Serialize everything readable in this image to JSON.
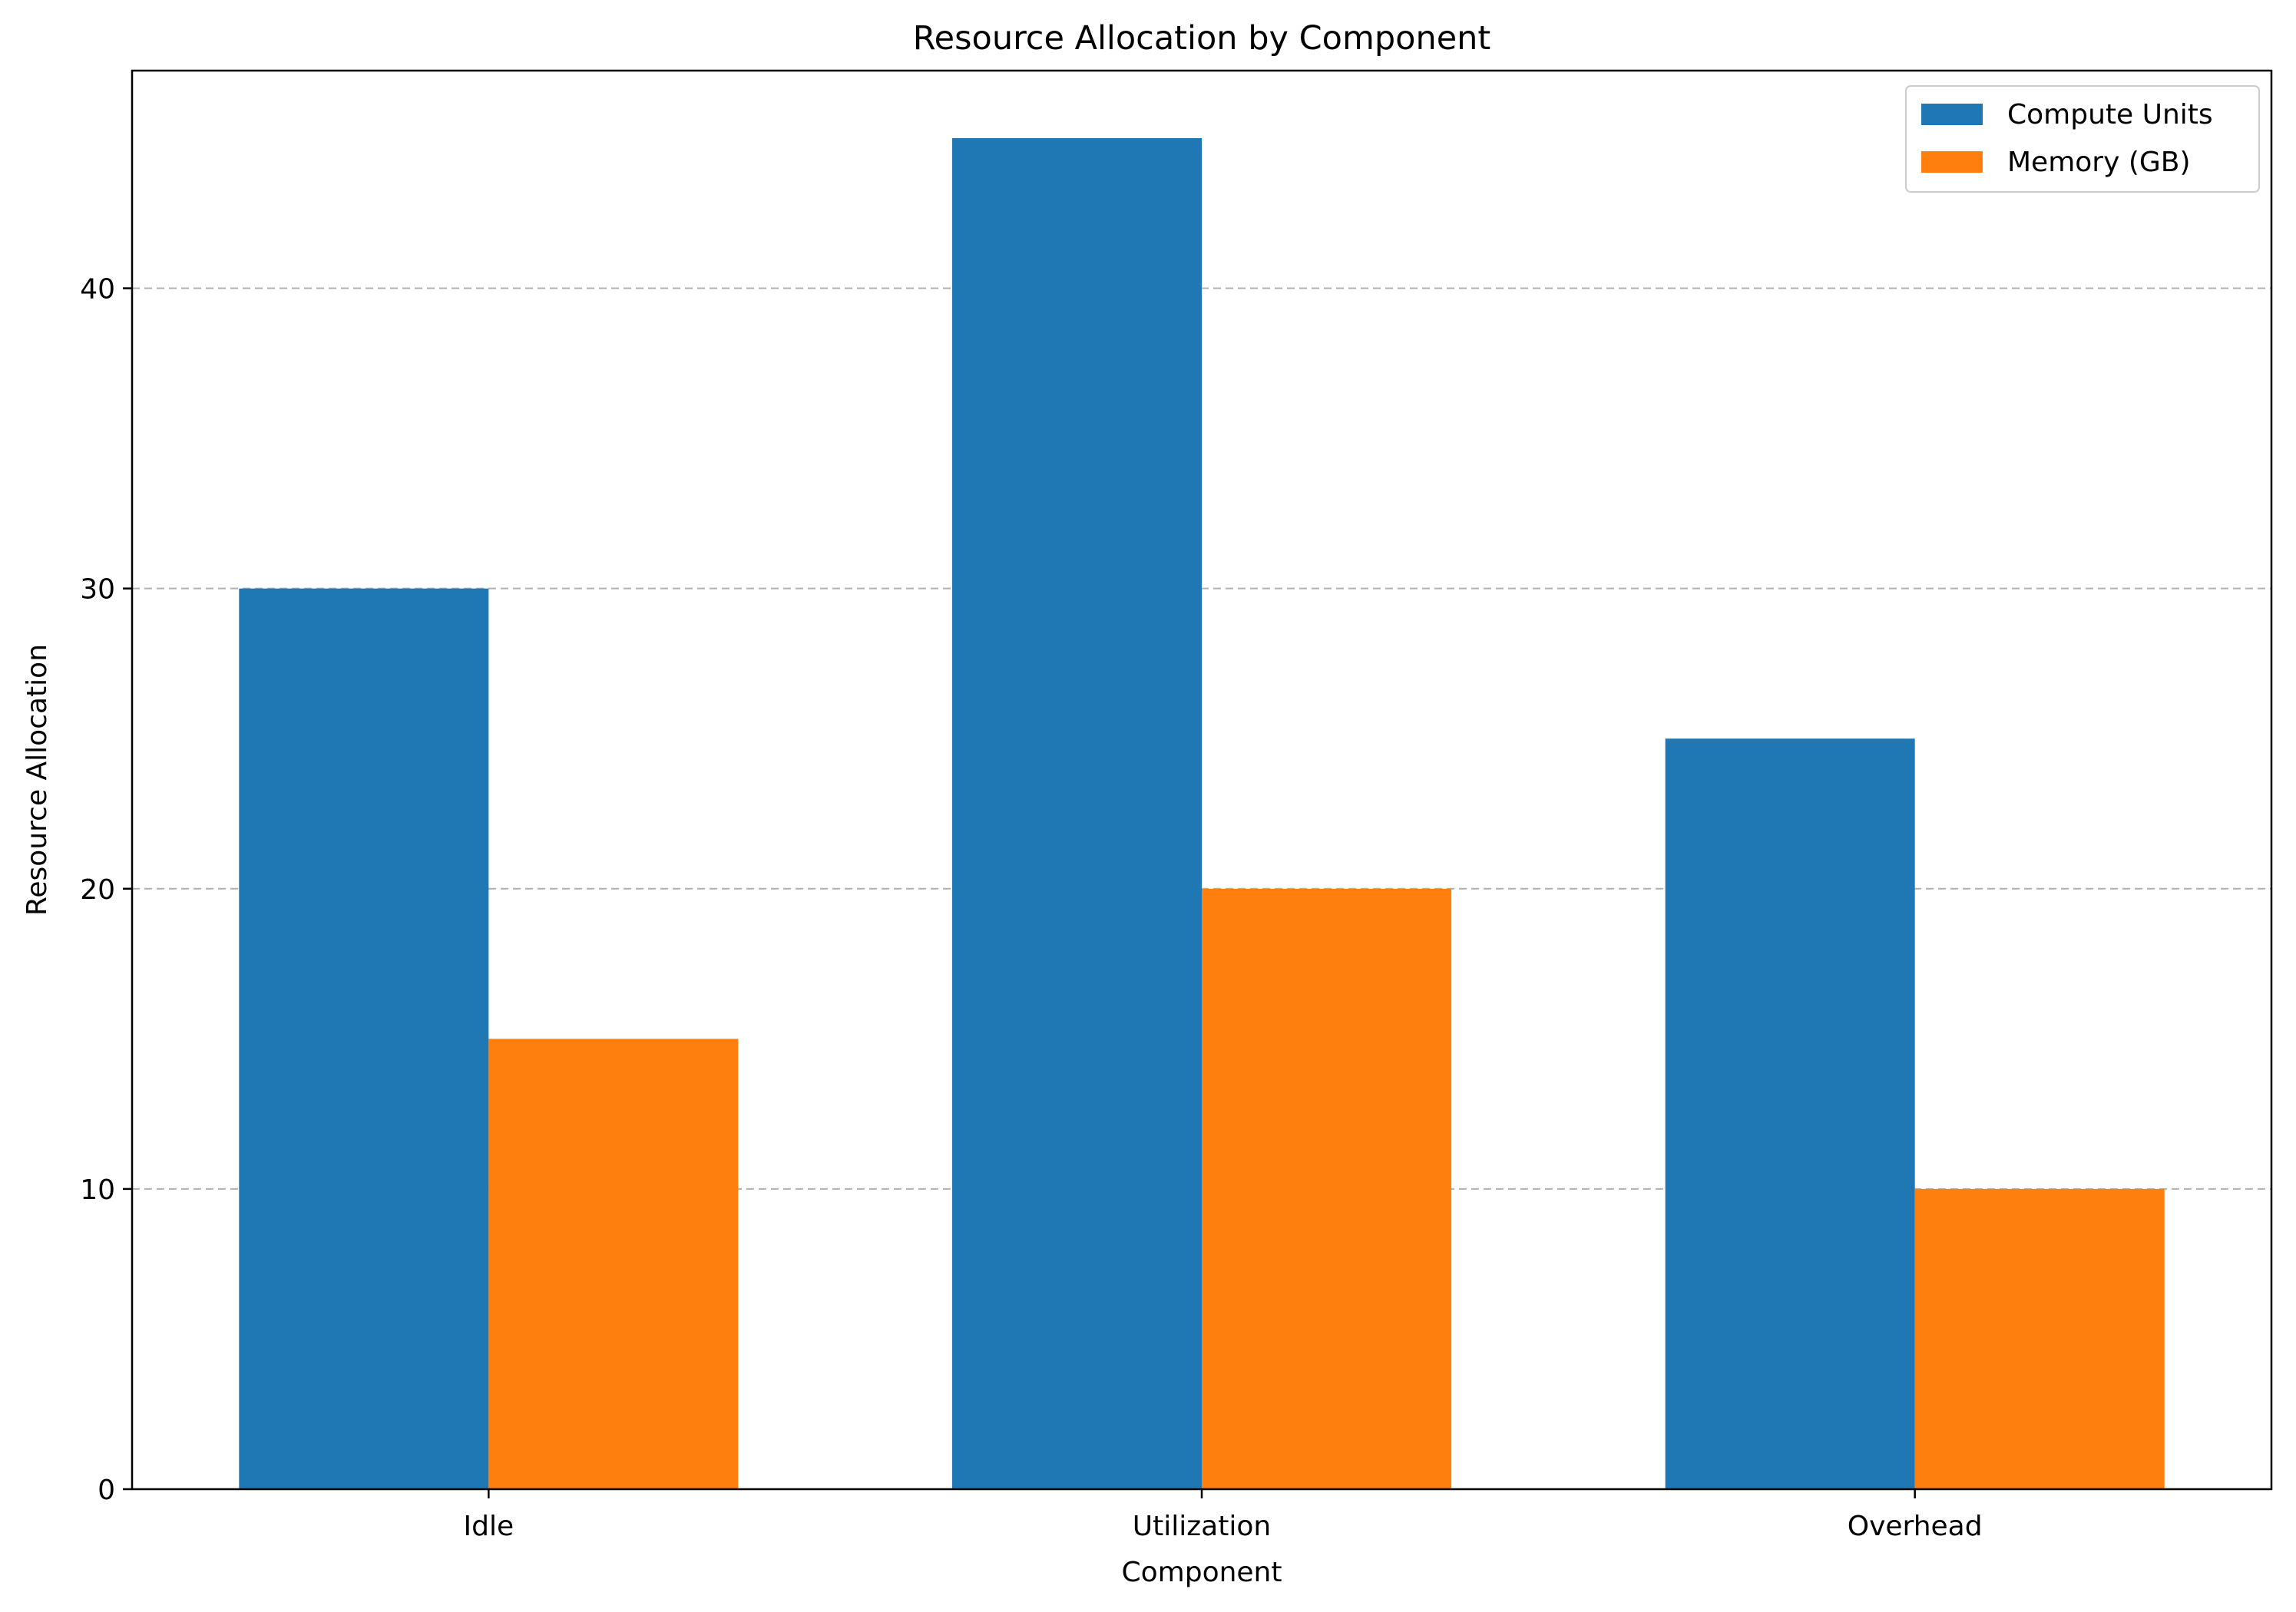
{
  "chart_data": {
    "type": "bar",
    "title": "Resource Allocation by Component",
    "xlabel": "Component",
    "ylabel": "Resource Allocation",
    "categories": [
      "Idle",
      "Utilization",
      "Overhead"
    ],
    "series": [
      {
        "name": "Compute Units",
        "values": [
          30,
          45,
          25
        ],
        "color": "#1f77b4"
      },
      {
        "name": "Memory (GB)",
        "values": [
          15,
          20,
          10
        ],
        "color": "#ff7f0e"
      }
    ],
    "ylim": [
      0,
      47.25
    ],
    "yticks": [
      0,
      10,
      20,
      30,
      40
    ],
    "grid": {
      "y": true,
      "x": false,
      "style": "dashed",
      "color": "#b0b0b0"
    },
    "legend": "top-right"
  }
}
